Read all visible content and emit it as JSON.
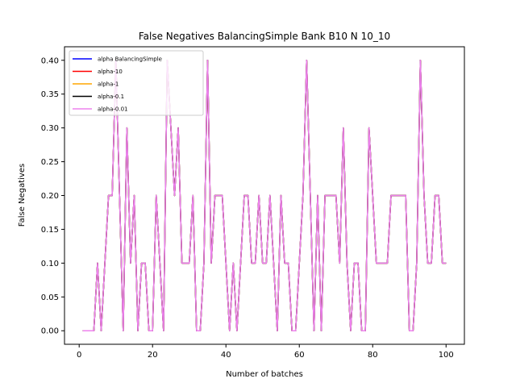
{
  "chart_data": {
    "type": "line",
    "title": "False Negatives BalancingSimple Bank B10 N 10_10",
    "xlabel": "Number of batches",
    "ylabel": "False Negatives",
    "xlim": [
      -4,
      105
    ],
    "ylim": [
      -0.02,
      0.42
    ],
    "xticks": [
      0,
      20,
      40,
      60,
      80,
      100
    ],
    "xtick_labels": [
      "0",
      "20",
      "40",
      "60",
      "80",
      "100"
    ],
    "yticks": [
      0.0,
      0.05,
      0.1,
      0.15,
      0.2,
      0.25,
      0.3,
      0.35,
      0.4
    ],
    "ytick_labels": [
      "0.00",
      "0.05",
      "0.10",
      "0.15",
      "0.20",
      "0.25",
      "0.30",
      "0.35",
      "0.40"
    ],
    "grid": false,
    "legend_position": "top-left",
    "x": [
      1,
      2,
      3,
      4,
      5,
      6,
      7,
      8,
      9,
      10,
      11,
      12,
      13,
      14,
      15,
      16,
      17,
      18,
      19,
      20,
      21,
      22,
      23,
      24,
      25,
      26,
      27,
      28,
      29,
      30,
      31,
      32,
      33,
      34,
      35,
      36,
      37,
      38,
      39,
      40,
      41,
      42,
      43,
      44,
      45,
      46,
      47,
      48,
      49,
      50,
      51,
      52,
      53,
      54,
      55,
      56,
      57,
      58,
      59,
      60,
      61,
      62,
      63,
      64,
      65,
      66,
      67,
      68,
      69,
      70,
      71,
      72,
      73,
      74,
      75,
      76,
      77,
      78,
      79,
      80,
      81,
      82,
      83,
      84,
      85,
      86,
      87,
      88,
      89,
      90,
      91,
      92,
      93,
      94,
      95,
      96,
      97,
      98,
      99,
      100
    ],
    "series": [
      {
        "name": "alpha BalancingSimple",
        "color": "#0000ff",
        "values": [
          0.0,
          0.0,
          0.0,
          0.0,
          0.1,
          0.0,
          0.1,
          0.2,
          0.2,
          0.4,
          0.2,
          0.0,
          0.3,
          0.1,
          0.2,
          0.0,
          0.1,
          0.1,
          0.0,
          0.0,
          0.2,
          0.1,
          0.0,
          0.4,
          0.3,
          0.2,
          0.3,
          0.1,
          0.1,
          0.1,
          0.2,
          0.0,
          0.0,
          0.1,
          0.4,
          0.1,
          0.2,
          0.2,
          0.2,
          0.1,
          0.0,
          0.1,
          0.0,
          0.1,
          0.2,
          0.2,
          0.1,
          0.1,
          0.2,
          0.1,
          0.1,
          0.2,
          0.1,
          0.0,
          0.2,
          0.1,
          0.1,
          0.0,
          0.0,
          0.1,
          0.2,
          0.4,
          0.2,
          0.0,
          0.2,
          0.0,
          0.2,
          0.2,
          0.2,
          0.2,
          0.1,
          0.3,
          0.1,
          0.0,
          0.1,
          0.1,
          0.0,
          0.0,
          0.3,
          0.2,
          0.1,
          0.1,
          0.1,
          0.1,
          0.2,
          0.2,
          0.2,
          0.2,
          0.2,
          0.0,
          0.0,
          0.1,
          0.4,
          0.2,
          0.1,
          0.1,
          0.2,
          0.2,
          0.1,
          0.1
        ]
      },
      {
        "name": "alpha-10",
        "color": "#ff0000",
        "values": [
          0.0,
          0.0,
          0.0,
          0.0,
          0.1,
          0.0,
          0.1,
          0.2,
          0.2,
          0.4,
          0.2,
          0.0,
          0.3,
          0.1,
          0.2,
          0.0,
          0.1,
          0.1,
          0.0,
          0.0,
          0.2,
          0.1,
          0.0,
          0.4,
          0.3,
          0.2,
          0.3,
          0.1,
          0.1,
          0.1,
          0.2,
          0.0,
          0.0,
          0.1,
          0.4,
          0.1,
          0.2,
          0.2,
          0.2,
          0.1,
          0.0,
          0.1,
          0.0,
          0.1,
          0.2,
          0.2,
          0.1,
          0.1,
          0.2,
          0.1,
          0.1,
          0.2,
          0.1,
          0.0,
          0.2,
          0.1,
          0.1,
          0.0,
          0.0,
          0.1,
          0.2,
          0.4,
          0.2,
          0.0,
          0.2,
          0.0,
          0.2,
          0.2,
          0.2,
          0.2,
          0.1,
          0.3,
          0.1,
          0.0,
          0.1,
          0.1,
          0.0,
          0.0,
          0.3,
          0.2,
          0.1,
          0.1,
          0.1,
          0.1,
          0.2,
          0.2,
          0.2,
          0.2,
          0.2,
          0.0,
          0.0,
          0.1,
          0.4,
          0.2,
          0.1,
          0.1,
          0.2,
          0.2,
          0.1,
          0.1
        ]
      },
      {
        "name": "alpha-1",
        "color": "#ffa500",
        "values": [
          0.0,
          0.0,
          0.0,
          0.0,
          0.1,
          0.0,
          0.1,
          0.2,
          0.2,
          0.4,
          0.2,
          0.0,
          0.3,
          0.1,
          0.2,
          0.0,
          0.1,
          0.1,
          0.0,
          0.0,
          0.2,
          0.1,
          0.0,
          0.4,
          0.3,
          0.2,
          0.3,
          0.1,
          0.1,
          0.1,
          0.2,
          0.0,
          0.0,
          0.1,
          0.4,
          0.1,
          0.2,
          0.2,
          0.2,
          0.1,
          0.0,
          0.1,
          0.0,
          0.1,
          0.2,
          0.2,
          0.1,
          0.1,
          0.2,
          0.1,
          0.1,
          0.2,
          0.1,
          0.0,
          0.2,
          0.1,
          0.1,
          0.0,
          0.0,
          0.1,
          0.2,
          0.4,
          0.2,
          0.0,
          0.2,
          0.0,
          0.2,
          0.2,
          0.2,
          0.2,
          0.1,
          0.3,
          0.1,
          0.0,
          0.1,
          0.1,
          0.0,
          0.0,
          0.3,
          0.2,
          0.1,
          0.1,
          0.1,
          0.1,
          0.2,
          0.2,
          0.2,
          0.2,
          0.2,
          0.0,
          0.0,
          0.1,
          0.4,
          0.2,
          0.1,
          0.1,
          0.2,
          0.2,
          0.1,
          0.1
        ]
      },
      {
        "name": "alpha-0.1",
        "color": "#000000",
        "values": [
          0.0,
          0.0,
          0.0,
          0.0,
          0.1,
          0.0,
          0.1,
          0.2,
          0.2,
          0.4,
          0.2,
          0.0,
          0.3,
          0.1,
          0.2,
          0.0,
          0.1,
          0.1,
          0.0,
          0.0,
          0.2,
          0.1,
          0.0,
          0.4,
          0.3,
          0.2,
          0.3,
          0.1,
          0.1,
          0.1,
          0.2,
          0.0,
          0.0,
          0.1,
          0.4,
          0.1,
          0.2,
          0.2,
          0.2,
          0.1,
          0.0,
          0.1,
          0.0,
          0.1,
          0.2,
          0.2,
          0.1,
          0.1,
          0.2,
          0.1,
          0.1,
          0.2,
          0.1,
          0.0,
          0.2,
          0.1,
          0.1,
          0.0,
          0.0,
          0.1,
          0.2,
          0.4,
          0.2,
          0.0,
          0.2,
          0.0,
          0.2,
          0.2,
          0.2,
          0.2,
          0.1,
          0.3,
          0.1,
          0.0,
          0.1,
          0.1,
          0.0,
          0.0,
          0.3,
          0.2,
          0.1,
          0.1,
          0.1,
          0.1,
          0.2,
          0.2,
          0.2,
          0.2,
          0.2,
          0.0,
          0.0,
          0.1,
          0.4,
          0.2,
          0.1,
          0.1,
          0.2,
          0.2,
          0.1,
          0.1
        ]
      },
      {
        "name": "alpha-0.01",
        "color": "#ee82ee",
        "values": [
          0.0,
          0.0,
          0.0,
          0.0,
          0.1,
          0.0,
          0.1,
          0.2,
          0.2,
          0.4,
          0.2,
          0.0,
          0.3,
          0.1,
          0.2,
          0.0,
          0.1,
          0.1,
          0.0,
          0.0,
          0.2,
          0.1,
          0.0,
          0.4,
          0.3,
          0.2,
          0.3,
          0.1,
          0.1,
          0.1,
          0.2,
          0.0,
          0.0,
          0.1,
          0.4,
          0.1,
          0.2,
          0.2,
          0.2,
          0.1,
          0.0,
          0.1,
          0.0,
          0.1,
          0.2,
          0.2,
          0.1,
          0.1,
          0.2,
          0.1,
          0.1,
          0.2,
          0.1,
          0.0,
          0.2,
          0.1,
          0.1,
          0.0,
          0.0,
          0.1,
          0.2,
          0.4,
          0.2,
          0.0,
          0.2,
          0.0,
          0.2,
          0.2,
          0.2,
          0.2,
          0.1,
          0.3,
          0.1,
          0.0,
          0.1,
          0.1,
          0.0,
          0.0,
          0.3,
          0.2,
          0.1,
          0.1,
          0.1,
          0.1,
          0.2,
          0.2,
          0.2,
          0.2,
          0.2,
          0.0,
          0.0,
          0.1,
          0.4,
          0.2,
          0.1,
          0.1,
          0.2,
          0.2,
          0.1,
          0.1
        ]
      }
    ]
  }
}
